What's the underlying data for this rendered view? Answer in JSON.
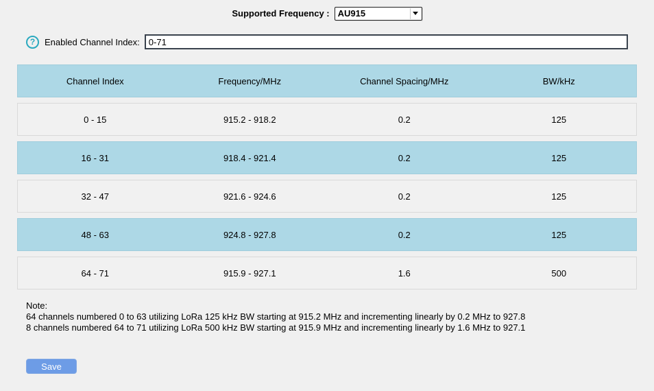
{
  "frequency": {
    "label": "Supported Frequency :",
    "selected": "AU915"
  },
  "channel_index": {
    "label": "Enabled Channel Index:",
    "value": "0-71",
    "help_icon_glyph": "?"
  },
  "table": {
    "headers": [
      "Channel Index",
      "Frequency/MHz",
      "Channel Spacing/MHz",
      "BW/kHz"
    ],
    "rows": [
      [
        "0 - 15",
        "915.2 - 918.2",
        "0.2",
        "125"
      ],
      [
        "16 - 31",
        "918.4 - 921.4",
        "0.2",
        "125"
      ],
      [
        "32 - 47",
        "921.6 - 924.6",
        "0.2",
        "125"
      ],
      [
        "48 - 63",
        "924.8 - 927.8",
        "0.2",
        "125"
      ],
      [
        "64 - 71",
        "915.9 - 927.1",
        "1.6",
        "500"
      ]
    ]
  },
  "note": {
    "title": "Note:",
    "line1": "64 channels numbered 0 to 63 utilizing LoRa 125 kHz BW starting at 915.2 MHz and incrementing linearly by 0.2 MHz to 927.8",
    "line2": "8 channels numbered 64 to 71 utilizing LoRa 500 kHz BW starting at 915.9 MHz and incrementing linearly by 1.6 MHz to 927.1"
  },
  "save": {
    "label": "Save"
  },
  "colors": {
    "table_accent_blue": "#add8e6",
    "row_gray": "#f1f1f1",
    "button_blue": "#6d9ce6",
    "help_teal": "#2aa9bf",
    "input_border": "#39424d"
  }
}
